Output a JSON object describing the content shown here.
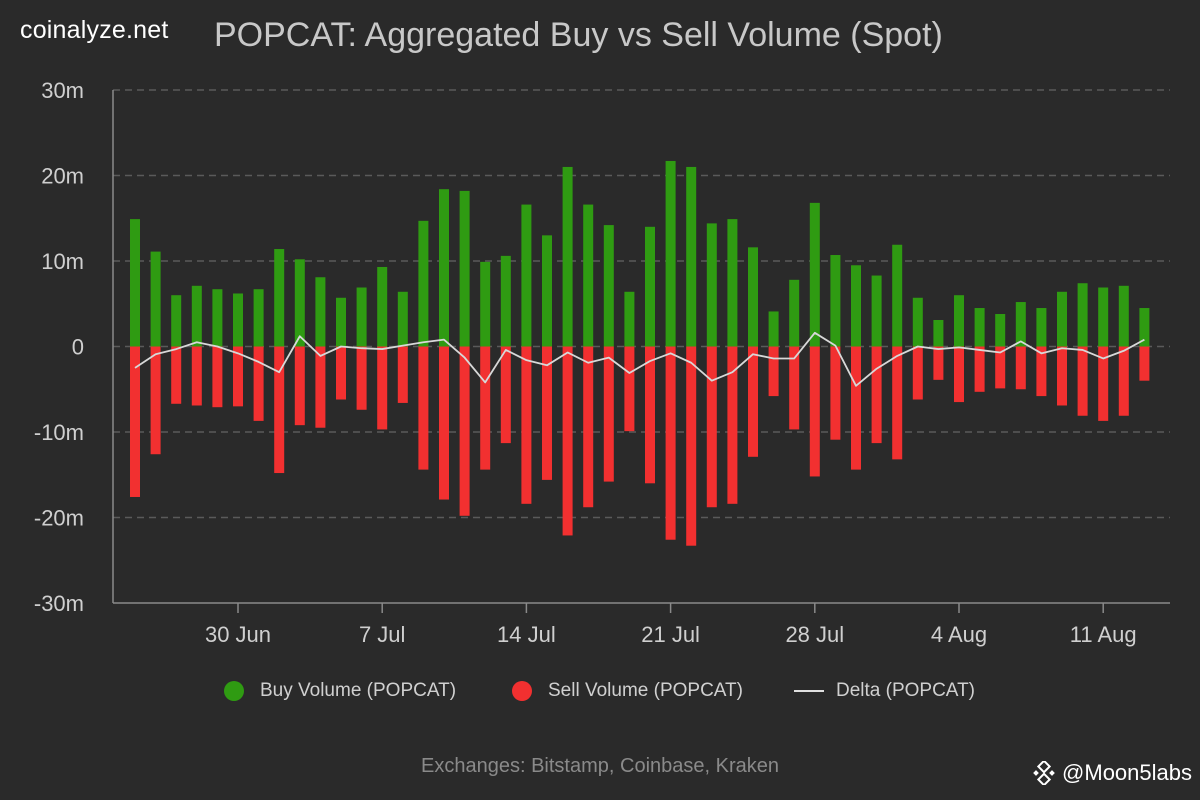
{
  "brand": "coinalyze.net",
  "footer": "Exchanges: Bitstamp, Coinbase, Kraken",
  "watermark": "@Moon5labs",
  "colors": {
    "buy": "#2f9b12",
    "sell": "#f23030",
    "delta": "#d8d8d8",
    "grid": "#5a5a5a",
    "axis_text": "#cfcfcf"
  },
  "chart_data": {
    "type": "bar",
    "title": "POPCAT: Aggregated Buy vs Sell Volume (Spot)",
    "ylim": [
      -30,
      30
    ],
    "yticks": [
      30,
      20,
      10,
      0,
      -10,
      -20,
      -30
    ],
    "ytick_labels": [
      "30m",
      "20m",
      "10m",
      "0",
      "-10m",
      "-20m",
      "-30m"
    ],
    "xtick_labels": [
      "30 Jun",
      "7 Jul",
      "14 Jul",
      "21 Jul",
      "28 Jul",
      "4 Aug",
      "11 Aug"
    ],
    "xtick_index": [
      5,
      12,
      19,
      26,
      33,
      40,
      47
    ],
    "grid": "horizontal-dashed",
    "legend_placement": "bottom",
    "series": [
      {
        "name": "Buy Volume (POPCAT)",
        "values": [
          14.9,
          11.1,
          6.0,
          7.1,
          6.7,
          6.2,
          6.7,
          11.4,
          10.2,
          8.1,
          5.7,
          6.9,
          9.3,
          6.4,
          14.7,
          18.4,
          18.2,
          9.9,
          10.6,
          16.6,
          13.0,
          21.0,
          16.6,
          14.2,
          6.4,
          14.0,
          21.7,
          21.0,
          14.4,
          14.9,
          11.6,
          4.1,
          7.8,
          16.8,
          10.7,
          9.5,
          8.3,
          11.9,
          5.7,
          3.1,
          6.0,
          4.5,
          3.8,
          5.2,
          4.5,
          6.4,
          7.4,
          6.9,
          7.1,
          4.5
        ]
      },
      {
        "name": "Sell Volume (POPCAT)",
        "values": [
          -17.6,
          -12.6,
          -6.7,
          -6.9,
          -7.1,
          -7.0,
          -8.7,
          -14.8,
          -9.2,
          -9.5,
          -6.2,
          -7.4,
          -9.7,
          -6.6,
          -14.4,
          -17.9,
          -19.8,
          -14.4,
          -11.3,
          -18.4,
          -15.6,
          -22.1,
          -18.8,
          -15.8,
          -9.9,
          -16.0,
          -22.6,
          -23.3,
          -18.8,
          -18.4,
          -12.9,
          -5.8,
          -9.7,
          -15.2,
          -10.9,
          -14.4,
          -11.3,
          -13.2,
          -6.2,
          -3.9,
          -6.5,
          -5.3,
          -4.9,
          -5.0,
          -5.8,
          -6.9,
          -8.1,
          -8.7,
          -8.1,
          -4.0
        ]
      },
      {
        "name": "Delta (POPCAT)",
        "values": [
          -2.5,
          -0.9,
          -0.3,
          0.5,
          0.0,
          -0.8,
          -1.8,
          -3.0,
          1.2,
          -1.1,
          0.0,
          -0.2,
          -0.3,
          0.1,
          0.5,
          0.8,
          -1.3,
          -4.2,
          -0.4,
          -1.6,
          -2.2,
          -0.7,
          -1.9,
          -1.3,
          -3.1,
          -1.7,
          -0.8,
          -1.9,
          -4.0,
          -3.0,
          -0.9,
          -1.4,
          -1.4,
          1.6,
          0.1,
          -4.6,
          -2.6,
          -1.1,
          0.0,
          -0.3,
          -0.1,
          -0.4,
          -0.7,
          0.6,
          -0.8,
          -0.2,
          -0.4,
          -1.4,
          -0.5,
          0.8
        ]
      }
    ]
  }
}
